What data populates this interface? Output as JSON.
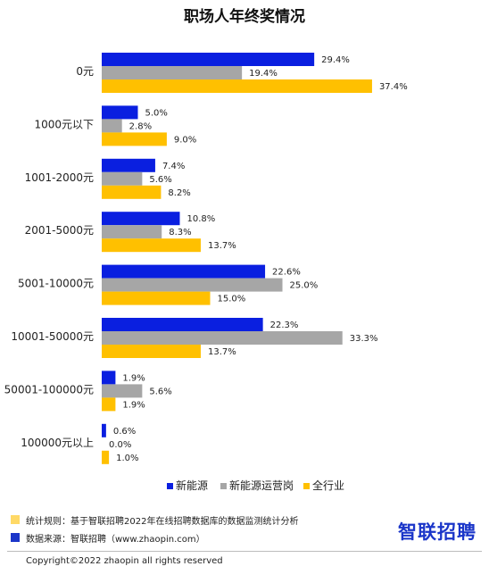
{
  "chart_data": {
    "type": "bar",
    "orientation": "horizontal",
    "title": "职场人年终奖情况",
    "categories": [
      "0元",
      "1000元以下",
      "1001-2000元",
      "2001-5000元",
      "5001-10000元",
      "10001-50000元",
      "50001-100000元",
      "100000元以上"
    ],
    "series": [
      {
        "name": "新能源",
        "color": "#0a1fe0",
        "values": [
          29.4,
          5.0,
          7.4,
          10.8,
          22.6,
          22.3,
          1.9,
          0.6
        ],
        "labels": [
          "29.4%",
          "5.0%",
          "7.4%",
          "10.8%",
          "22.6%",
          "22.3%",
          "1.9%",
          "0.6%"
        ]
      },
      {
        "name": "新能源运营岗",
        "color": "#a6a6a6",
        "values": [
          19.4,
          2.8,
          5.6,
          8.3,
          25.0,
          33.3,
          5.6,
          0.0
        ],
        "labels": [
          "19.4%",
          "2.8%",
          "5.6%",
          "8.3%",
          "25.0%",
          "33.3%",
          "5.6%",
          "0.0%"
        ]
      },
      {
        "name": "全行业",
        "color": "#ffc000",
        "values": [
          37.4,
          9.0,
          8.2,
          13.7,
          15.0,
          13.7,
          1.9,
          1.0
        ],
        "labels": [
          "37.4%",
          "9.0%",
          "8.2%",
          "13.7%",
          "15.0%",
          "13.7%",
          "1.9%",
          "1.0%"
        ]
      }
    ],
    "legend_position": "bottom",
    "grid": false
  },
  "footer": {
    "notes": [
      {
        "text": "统计规则：基于智联招聘2022年在线招聘数据库的数据监测统计分析",
        "color": "#ffd966"
      },
      {
        "text": "数据来源：智联招聘（www.zhaopin.com）",
        "color": "#1b36c9"
      }
    ],
    "logo": "智联招聘",
    "copyright": "Copyright©2022 zhaopin all rights reserved"
  }
}
